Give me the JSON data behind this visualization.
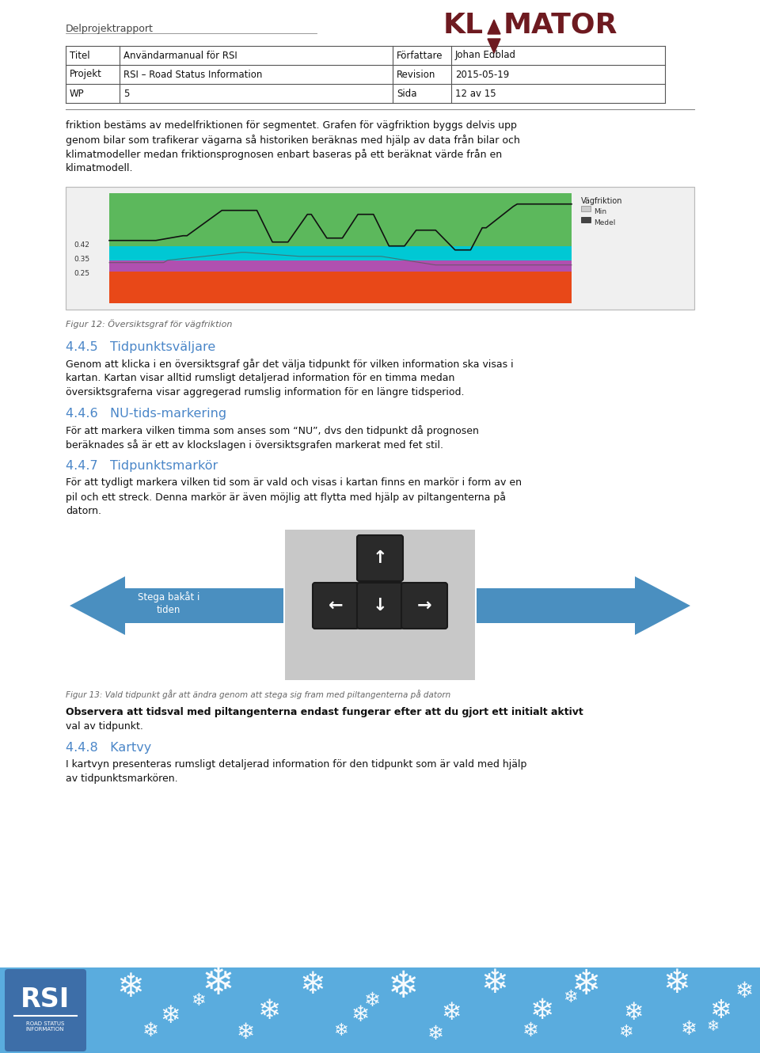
{
  "page_bg": "#ffffff",
  "header_text": "Delprojektrapport",
  "table": {
    "rows": [
      [
        "Titel",
        "Användarmanual för RSI",
        "Författare",
        "Johan Edblad"
      ],
      [
        "Projekt",
        "RSI – Road Status Information",
        "Revision",
        "2015-05-19"
      ],
      [
        "WP",
        "5",
        "Sida",
        "12 av 15"
      ]
    ]
  },
  "body_text_1": "friktion bestäms av medelfriktionen för segmentet. Grafen för vägfriktion byggs delvis upp\ngenom bilar som trafikerar vägarna så historiken beräknas med hjälp av data från bilar och\nklimatmodeller medan friktionsprognosen enbart baseras på ett beräknat värde från en\nklimatmodell.",
  "fig12_caption": "Figur 12: Översiktsgraf för vägfriktion",
  "section_445_title": "4.4.5   Tidpunktsväljare",
  "section_445_text": "Genom att klicka i en översiktsgraf går det välja tidpunkt för vilken information ska visas i\nkartan. Kartan visar alltid rumsligt detaljerad information för en timma medan\növersiktsgraferna visar aggregerad rumslig information för en längre tidsperiod.",
  "section_446_title": "4.4.6   NU-tids-markering",
  "section_446_text": "För att markera vilken timma som anses som “NU”, dvs den tidpunkt då prognosen\nberäknades så är ett av klockslagen i översiktsgrafen markerat med fet stil.",
  "section_447_title": "4.4.7   Tidpunktsmarkör",
  "section_447_text": "För att tydligt markera vilken tid som är vald och visas i kartan finns en markör i form av en\npil och ett streck. Denna markör är även möjlig att flytta med hjälp av piltangenterna på\ndatorn.",
  "fig13_caption": "Figur 13: Vald tidpunkt går att ändra genom att stega sig fram med piltangenterna på datorn",
  "observe_text": "Observera att tidsval med piltangenterna endast fungerar efter att du gjort ett initialt aktivt\nval av tidpunkt.",
  "section_448_title": "4.4.8   Kartvy",
  "section_448_text": "I kartvyn presenteras rumsligt detaljerad information för den tidpunkt som är vald med hjälp\nav tidpunktsmarkören.",
  "section_color": "#4a86c8",
  "table_border_color": "#555555",
  "footer_bg": "#5aacde",
  "footer_rsi_bg": "#3d6ea8",
  "footer_rsi_text": "RSI",
  "footer_sub_text": "ROAD STATUS\nINFORMATION"
}
